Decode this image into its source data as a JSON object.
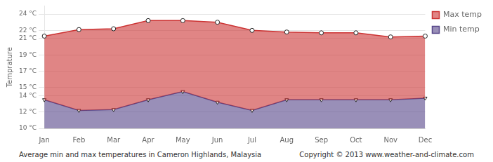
{
  "chart_data": {
    "type": "line",
    "title": "Average min and max temperatures in Cameron Highlands, Malaysia",
    "annotations": [
      "Copyright © 2013 www.weather-and-climate.com"
    ],
    "ylabel": "Temprature",
    "categories": [
      "Jan",
      "Feb",
      "Mar",
      "Apr",
      "May",
      "Jun",
      "Jul",
      "Aug",
      "Sep",
      "Oct",
      "Nov",
      "Dec"
    ],
    "series": [
      {
        "name": "Max temp",
        "color": "#cc3333",
        "marker": "circle",
        "values": [
          21.3,
          22.1,
          22.2,
          23.2,
          23.2,
          23.0,
          22.0,
          21.8,
          21.7,
          21.7,
          21.2,
          21.3
        ]
      },
      {
        "name": "Min temp",
        "color": "#554488",
        "marker": "triangle_down",
        "values": [
          13.5,
          12.2,
          12.3,
          13.5,
          14.5,
          13.2,
          12.2,
          13.5,
          13.5,
          13.5,
          13.5,
          13.7
        ]
      }
    ],
    "ylim": [
      10,
      25
    ],
    "yticks": [
      {
        "value": 10,
        "label": "10 °C"
      },
      {
        "value": 12,
        "label": "12 °C"
      },
      {
        "value": 14,
        "label": "14 °C"
      },
      {
        "value": 15,
        "label": "15 °C"
      },
      {
        "value": 17,
        "label": "17 °C"
      },
      {
        "value": 19,
        "label": "19 °C"
      },
      {
        "value": 21,
        "label": "21 °C"
      },
      {
        "value": 22,
        "label": "22 °C"
      },
      {
        "value": 24,
        "label": "24 °C"
      }
    ],
    "grid": "y",
    "legend": "upper right"
  }
}
